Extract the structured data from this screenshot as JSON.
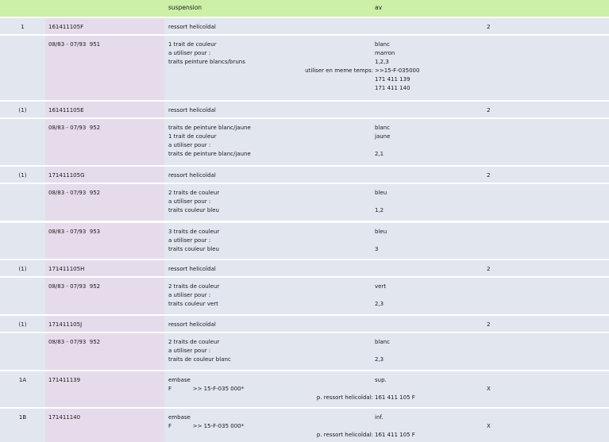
{
  "header": {
    "group": "suspension",
    "position": "av"
  },
  "rows": [
    {
      "kind": "main",
      "no": "1",
      "part": "161411105F",
      "desc": "ressort helicoïdal",
      "qty": "2"
    },
    {
      "kind": "sub",
      "part": "08/83 - 07/93  951",
      "desc": [
        "1 trait de couleur",
        "a utiliser pour :",
        "traits peinture blancs/bruns"
      ],
      "vals": [
        "blanc",
        "marron",
        "1,2,3",
        ">>15-F-035000",
        "171 411 139",
        "171 411 140"
      ],
      "remark": "utiliser en meme temps:"
    },
    {
      "kind": "main",
      "no": "(1)",
      "part": "161411105E",
      "desc": "ressort helicoïdal",
      "qty": "2"
    },
    {
      "kind": "sub",
      "part": "08/83 - 07/93  952",
      "desc": [
        "traits de peinture blanc/jaune",
        "1 trait de couleur",
        "a utiliser pour :",
        "traits de peinture blanc/jaune"
      ],
      "vals": [
        "blanc",
        "jaune",
        "",
        "2,1"
      ]
    },
    {
      "kind": "main",
      "no": "(1)",
      "part": "171411105G",
      "desc": "ressort helicoïdal",
      "qty": "2"
    },
    {
      "kind": "sub",
      "part": "08/83 - 07/93  952",
      "desc": [
        "2 traits de couleur",
        "a utiliser pour :",
        "traits couleur bleu"
      ],
      "vals": [
        "bleu",
        "",
        "1,2"
      ]
    },
    {
      "kind": "sub",
      "part": "08/83 - 07/93  953",
      "desc": [
        "3 traits de couleur",
        "a utiliser pour :",
        "traits couleur bleu"
      ],
      "vals": [
        "bleu",
        "",
        "3"
      ]
    },
    {
      "kind": "main",
      "no": "(1)",
      "part": "171411105H",
      "desc": "ressort helicoïdal",
      "qty": "2"
    },
    {
      "kind": "sub",
      "part": "08/83 - 07/93  952",
      "desc": [
        "2 traits de couleur",
        "a utiliser pour :",
        "traits couleur vert"
      ],
      "vals": [
        "vert",
        "",
        "2,3"
      ]
    },
    {
      "kind": "main",
      "no": "(1)",
      "part": "171411105J",
      "desc": "ressort helicoïdal",
      "qty": "2"
    },
    {
      "kind": "sub",
      "part": "08/83 - 07/93  952",
      "desc": [
        "2 traits de couleur",
        "a utiliser pour :",
        "traits de couleur blanc"
      ],
      "vals": [
        "blanc",
        "",
        "2,3"
      ]
    },
    {
      "kind": "main",
      "no": "1A",
      "part": "171411139",
      "desc": [
        "embase",
        "F            >> 15-F-035 000*"
      ],
      "remark": "p. ressort helicoïdal:",
      "vals": [
        "sup.",
        "",
        "161 411 105 F"
      ],
      "qty": "X"
    },
    {
      "kind": "main",
      "no": "1B",
      "part": "171411140",
      "desc": [
        "embase",
        "F            >> 15-F-035 000*"
      ],
      "remark": "p. ressort helicoïdal:",
      "vals": [
        "inf.",
        "",
        "161 411 105 F"
      ],
      "qty": "X"
    }
  ]
}
